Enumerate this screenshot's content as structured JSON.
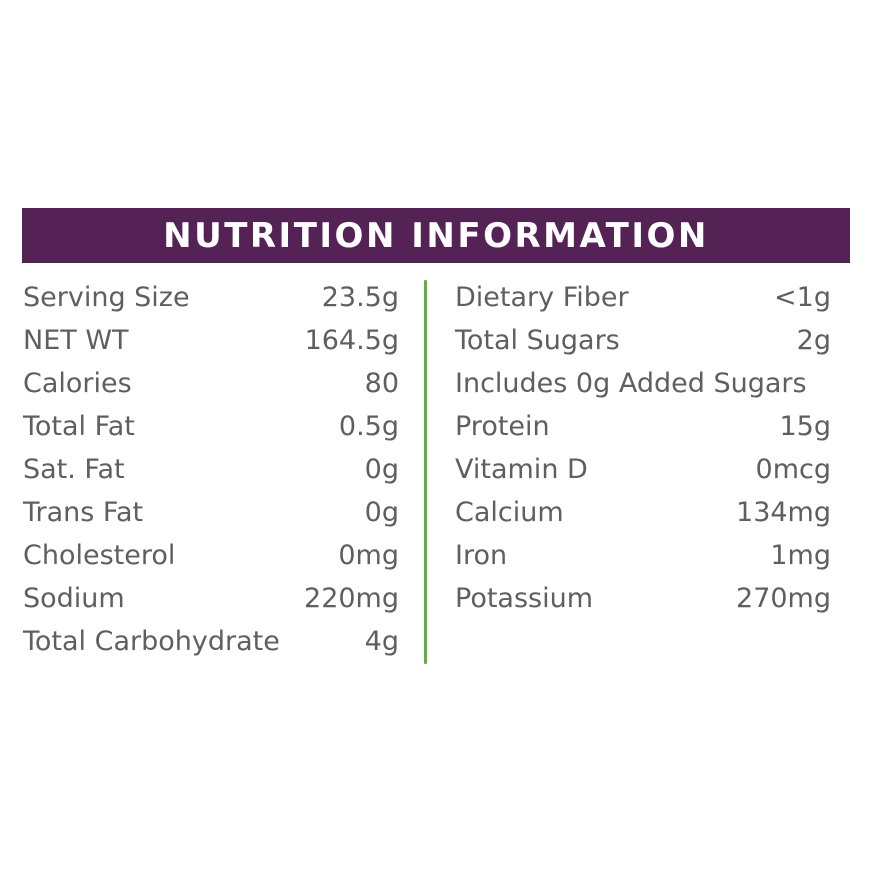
{
  "header": {
    "title": "NUTRITION INFORMATION"
  },
  "colors": {
    "header_bg": "#542254",
    "divider": "#6aa84f",
    "text": "#5f5f5f"
  },
  "left_column": [
    {
      "label": "Serving Size",
      "value": "23.5g"
    },
    {
      "label": "NET WT",
      "value": "164.5g"
    },
    {
      "label": "Calories",
      "value": "80"
    },
    {
      "label": "Total Fat",
      "value": "0.5g"
    },
    {
      "label": "Sat. Fat",
      "value": "0g"
    },
    {
      "label": "Trans Fat",
      "value": "0g"
    },
    {
      "label": "Cholesterol",
      "value": "0mg"
    },
    {
      "label": "Sodium",
      "value": "220mg"
    },
    {
      "label": "Total Carbohydrate",
      "value": "4g"
    }
  ],
  "right_column": [
    {
      "label": "Dietary Fiber",
      "value": "<1g"
    },
    {
      "label": "Total Sugars",
      "value": "2g"
    },
    {
      "label": "Includes 0g Added Sugars",
      "value": ""
    },
    {
      "label": "Protein",
      "value": "15g"
    },
    {
      "label": "Vitamin D",
      "value": "0mcg"
    },
    {
      "label": "Calcium",
      "value": "134mg"
    },
    {
      "label": "Iron",
      "value": "1mg"
    },
    {
      "label": "Potassium",
      "value": "270mg"
    }
  ]
}
